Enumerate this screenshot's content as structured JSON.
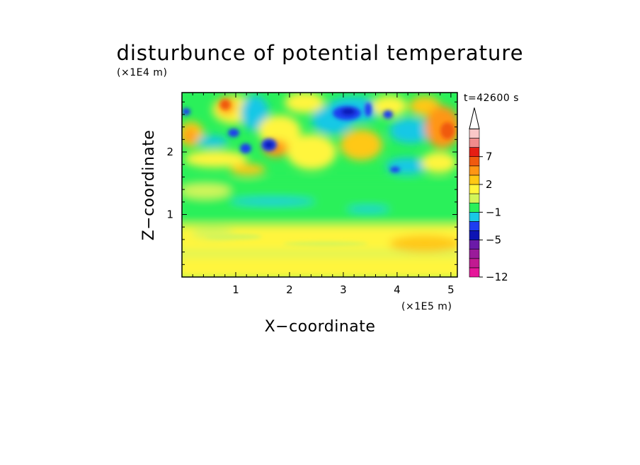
{
  "chart_data": {
    "type": "heatmap",
    "title": "disturbunce of potential temperature",
    "time_label": "t=42600 s",
    "xlabel": "X−coordinate",
    "ylabel": "Z−coordinate",
    "x_unit": "(×1E5 m)",
    "y_unit": "(×1E4 m)",
    "xlim": [
      0,
      5.12
    ],
    "ylim": [
      0,
      2.95
    ],
    "x_ticks": [
      1,
      2,
      3,
      4,
      5
    ],
    "y_ticks": [
      1,
      2
    ],
    "x_tick_labels": [
      "1",
      "2",
      "3",
      "4",
      "5"
    ],
    "y_tick_labels": [
      "1",
      "2"
    ],
    "colorbar": {
      "colors": [
        "#e6179a",
        "#c11a91",
        "#9a1b9a",
        "#6b1aa8",
        "#0d14b4",
        "#1e3df0",
        "#19c8e6",
        "#2af05a",
        "#d2f55a",
        "#fff53c",
        "#ffc814",
        "#ff9614",
        "#f05a0f",
        "#e61e14",
        "#f08c8c",
        "#fac8c8"
      ],
      "levels": [
        -12,
        -5,
        -1,
        2,
        7
      ],
      "level_labels": [
        "−12",
        "−5",
        "−1",
        "2",
        "7"
      ],
      "extend": "max",
      "extend_color": "#ffffff"
    }
  }
}
